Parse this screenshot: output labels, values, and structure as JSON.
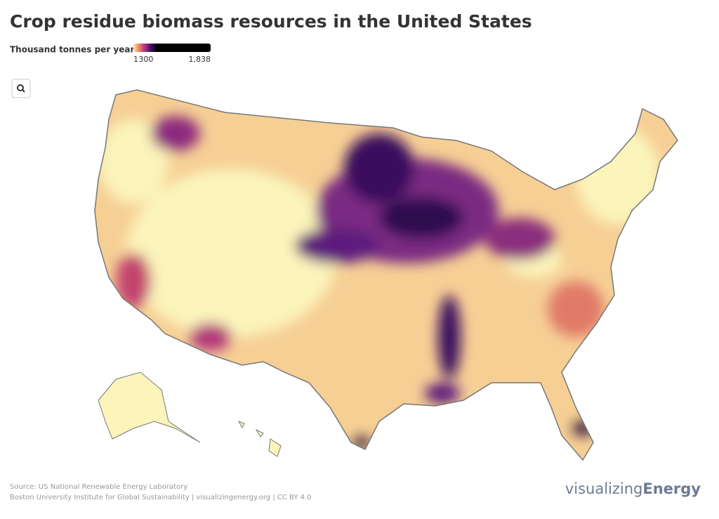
{
  "title": "Crop residue biomass resources in the United States",
  "legend": {
    "title": "Thousand tonnes per year",
    "xlim": [
      1,
      1838
    ],
    "ticks": [
      1,
      300,
      {
        "value": 1838,
        "label": "1,838"
      }
    ],
    "colors": [
      "#fbe3ac",
      "#f3a071",
      "#d9566b",
      "#9c2f7f",
      "#4b1478",
      "#000000"
    ]
  },
  "source": [
    "Source: US National Renewable Energy Laboratory",
    "Boston University Institute for Global Sustainability | visualizingenergy.org | CC BY 4.0"
  ],
  "brand": {
    "light": "visualizing",
    "bold": "Energy"
  }
}
